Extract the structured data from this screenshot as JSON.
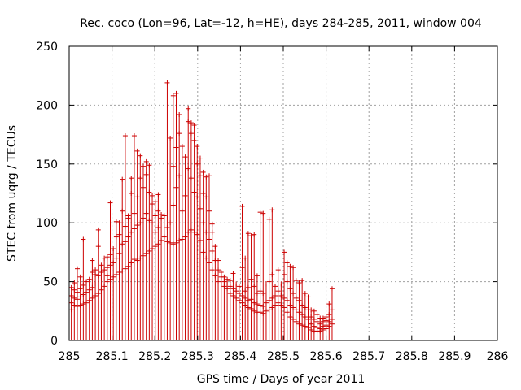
{
  "chart_data": {
    "type": "scatter",
    "title": "Rec. coco (Lon=96, Lat=-12, h=HE), days 284-285, 2011, window 004",
    "xlabel": "GPS time / Days of year 2011",
    "ylabel": "STEC from uqrg / TECUs",
    "xlim": [
      285,
      286
    ],
    "ylim": [
      0,
      250
    ],
    "x_ticks": [
      285,
      285.1,
      285.2,
      285.3,
      285.4,
      285.5,
      285.6,
      285.7,
      285.8,
      285.9,
      286
    ],
    "x_tick_labels": [
      "285",
      "285.1",
      "285.2",
      "285.3",
      "285.4",
      "285.5",
      "285.6",
      "285.7",
      "285.8",
      "285.9",
      "286"
    ],
    "y_ticks": [
      0,
      50,
      100,
      150,
      200,
      250
    ],
    "y_tick_labels": [
      "0",
      "50",
      "100",
      "150",
      "200",
      "250"
    ],
    "grid": true,
    "series_color": "#cc0000",
    "bars": [
      {
        "x": 285.005,
        "values": [
          26,
          32,
          38,
          45
        ]
      },
      {
        "x": 285.012,
        "values": [
          30,
          36,
          43,
          49
        ]
      },
      {
        "x": 285.019,
        "values": [
          29,
          35,
          41,
          61
        ]
      },
      {
        "x": 285.026,
        "values": [
          30,
          37,
          44,
          54
        ]
      },
      {
        "x": 285.033,
        "values": [
          31,
          39,
          47,
          86
        ]
      },
      {
        "x": 285.04,
        "values": [
          32,
          41,
          50
        ]
      },
      {
        "x": 285.047,
        "values": [
          34,
          43,
          48,
          52
        ]
      },
      {
        "x": 285.054,
        "values": [
          36,
          45,
          58,
          68
        ]
      },
      {
        "x": 285.061,
        "values": [
          38,
          48,
          56,
          60
        ]
      },
      {
        "x": 285.068,
        "values": [
          40,
          55,
          80,
          94
        ]
      },
      {
        "x": 285.075,
        "values": [
          43,
          58,
          64
        ]
      },
      {
        "x": 285.082,
        "values": [
          46,
          60,
          70
        ]
      },
      {
        "x": 285.089,
        "values": [
          50,
          55,
          62,
          71
        ]
      },
      {
        "x": 285.096,
        "values": [
          52,
          64,
          73,
          117
        ]
      },
      {
        "x": 285.103,
        "values": [
          54,
          66,
          78
        ]
      },
      {
        "x": 285.11,
        "values": [
          56,
          70,
          88,
          101
        ]
      },
      {
        "x": 285.117,
        "values": [
          58,
          74,
          90,
          100
        ]
      },
      {
        "x": 285.124,
        "values": [
          59,
          82,
          110,
          137
        ]
      },
      {
        "x": 285.131,
        "values": [
          61,
          84,
          97,
          174
        ]
      },
      {
        "x": 285.138,
        "values": [
          63,
          88,
          104,
          106
        ]
      },
      {
        "x": 285.145,
        "values": [
          66,
          92,
          125,
          138
        ]
      },
      {
        "x": 285.152,
        "values": [
          69,
          95,
          108,
          174
        ]
      },
      {
        "x": 285.159,
        "values": [
          68,
          98,
          122,
          161
        ]
      },
      {
        "x": 285.166,
        "values": [
          70,
          100,
          138,
          157
        ]
      },
      {
        "x": 285.173,
        "values": [
          72,
          104,
          130,
          148
        ]
      },
      {
        "x": 285.18,
        "values": [
          74,
          108,
          141,
          152
        ]
      },
      {
        "x": 285.187,
        "values": [
          76,
          102,
          126,
          149
        ]
      },
      {
        "x": 285.194,
        "values": [
          78,
          100,
          116,
          123
        ]
      },
      {
        "x": 285.201,
        "values": [
          80,
          92,
          106,
          118
        ]
      },
      {
        "x": 285.208,
        "values": [
          82,
          96,
          110,
          124
        ]
      },
      {
        "x": 285.215,
        "values": [
          85,
          104,
          107
        ]
      },
      {
        "x": 285.222,
        "values": [
          88,
          106
        ]
      },
      {
        "x": 285.229,
        "values": [
          84,
          96,
          219
        ]
      },
      {
        "x": 285.236,
        "values": [
          83,
          100,
          172
        ]
      },
      {
        "x": 285.243,
        "values": [
          82,
          115,
          148,
          208
        ]
      },
      {
        "x": 285.25,
        "values": [
          83,
          130,
          164,
          210
        ]
      },
      {
        "x": 285.257,
        "values": [
          85,
          140,
          176,
          192
        ]
      },
      {
        "x": 285.264,
        "values": [
          86,
          110,
          165
        ]
      },
      {
        "x": 285.271,
        "values": [
          88,
          123,
          156
        ]
      },
      {
        "x": 285.278,
        "values": [
          92,
          146,
          186,
          197
        ]
      },
      {
        "x": 285.285,
        "values": [
          94,
          138,
          176,
          185
        ]
      },
      {
        "x": 285.292,
        "values": [
          92,
          126,
          170,
          183
        ]
      },
      {
        "x": 285.299,
        "values": [
          90,
          122,
          150,
          165
        ]
      },
      {
        "x": 285.306,
        "values": [
          85,
          112,
          140,
          155
        ]
      },
      {
        "x": 285.313,
        "values": [
          75,
          100,
          125,
          143
        ]
      },
      {
        "x": 285.32,
        "values": [
          70,
          92,
          122,
          139
        ]
      },
      {
        "x": 285.327,
        "values": [
          66,
          86,
          110,
          140
        ]
      },
      {
        "x": 285.334,
        "values": [
          60,
          76,
          92,
          99
        ]
      },
      {
        "x": 285.341,
        "values": [
          55,
          68,
          80
        ]
      },
      {
        "x": 285.348,
        "values": [
          50,
          60,
          68
        ]
      },
      {
        "x": 285.355,
        "values": [
          48,
          54,
          58
        ]
      },
      {
        "x": 285.362,
        "values": [
          46,
          50,
          54
        ]
      },
      {
        "x": 285.369,
        "values": [
          44,
          48,
          52
        ]
      },
      {
        "x": 285.376,
        "values": [
          40,
          46,
          51
        ]
      },
      {
        "x": 285.383,
        "values": [
          38,
          44,
          57
        ]
      },
      {
        "x": 285.39,
        "values": [
          36,
          42,
          48
        ]
      },
      {
        "x": 285.397,
        "values": [
          34,
          40,
          46
        ]
      },
      {
        "x": 285.404,
        "values": [
          32,
          38,
          62,
          114
        ]
      },
      {
        "x": 285.411,
        "values": [
          30,
          36,
          42,
          70
        ]
      },
      {
        "x": 285.418,
        "values": [
          28,
          34,
          45,
          91
        ]
      },
      {
        "x": 285.425,
        "values": [
          27,
          35,
          52,
          89
        ]
      },
      {
        "x": 285.432,
        "values": [
          25,
          32,
          46,
          90
        ]
      },
      {
        "x": 285.439,
        "values": [
          24,
          31,
          40,
          55
        ]
      },
      {
        "x": 285.446,
        "values": [
          24,
          30,
          42,
          109
        ]
      },
      {
        "x": 285.453,
        "values": [
          23,
          29,
          40,
          108
        ]
      },
      {
        "x": 285.46,
        "values": [
          25,
          32,
          48
        ]
      },
      {
        "x": 285.467,
        "values": [
          26,
          34,
          50,
          103
        ]
      },
      {
        "x": 285.474,
        "values": [
          28,
          36,
          56,
          111
        ]
      },
      {
        "x": 285.481,
        "values": [
          30,
          38,
          46
        ]
      },
      {
        "x": 285.488,
        "values": [
          32,
          42,
          60
        ]
      },
      {
        "x": 285.495,
        "values": [
          30,
          38,
          48
        ]
      },
      {
        "x": 285.502,
        "values": [
          28,
          36,
          56,
          75
        ]
      },
      {
        "x": 285.509,
        "values": [
          24,
          34,
          50,
          66
        ]
      },
      {
        "x": 285.516,
        "values": [
          20,
          30,
          44,
          63
        ]
      },
      {
        "x": 285.523,
        "values": [
          18,
          28,
          40,
          62
        ]
      },
      {
        "x": 285.53,
        "values": [
          16,
          26,
          36,
          51
        ]
      },
      {
        "x": 285.537,
        "values": [
          14,
          24,
          34,
          49
        ]
      },
      {
        "x": 285.544,
        "values": [
          13,
          22,
          30,
          51
        ]
      },
      {
        "x": 285.551,
        "values": [
          12,
          20,
          28,
          40
        ]
      },
      {
        "x": 285.558,
        "values": [
          11,
          18,
          26,
          37
        ]
      },
      {
        "x": 285.565,
        "values": [
          9,
          14,
          20,
          26
        ]
      },
      {
        "x": 285.572,
        "values": [
          8,
          12,
          18,
          25
        ]
      },
      {
        "x": 285.579,
        "values": [
          8,
          11,
          16,
          22
        ]
      },
      {
        "x": 285.586,
        "values": [
          8,
          10,
          14,
          19
        ]
      },
      {
        "x": 285.593,
        "values": [
          9,
          12,
          16,
          19
        ]
      },
      {
        "x": 285.6,
        "values": [
          10,
          13,
          17,
          20
        ]
      },
      {
        "x": 285.607,
        "values": [
          12,
          16,
          22,
          31
        ]
      },
      {
        "x": 285.614,
        "values": [
          14,
          18,
          26,
          44
        ]
      }
    ]
  }
}
